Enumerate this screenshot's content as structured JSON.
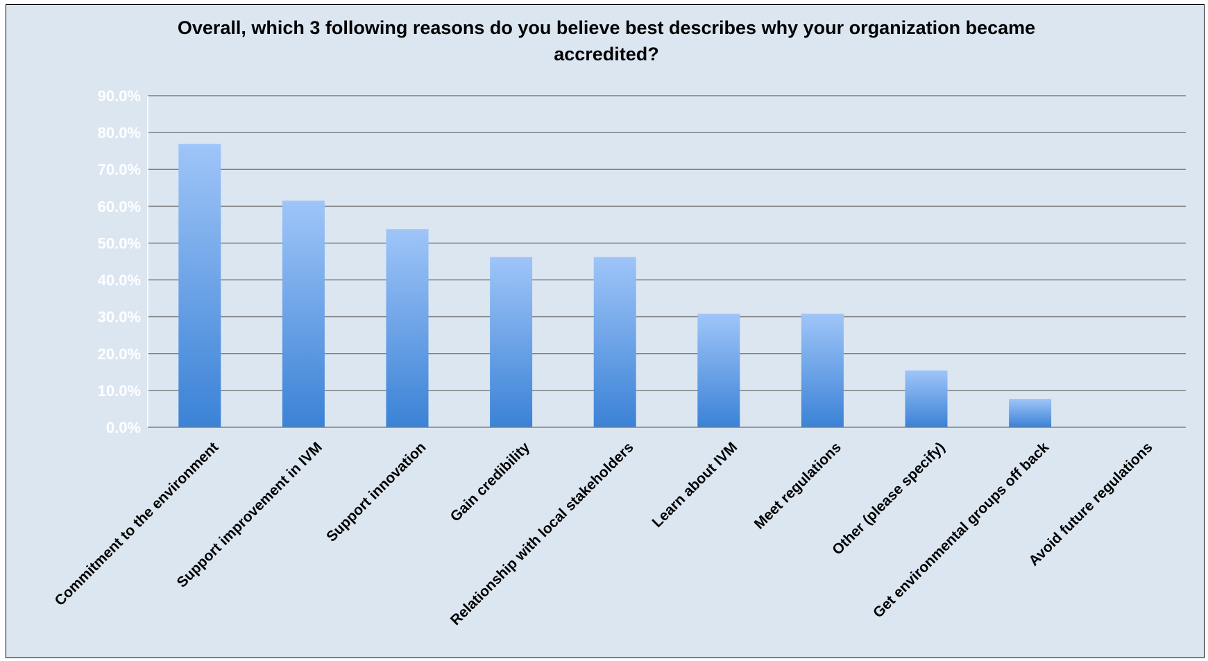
{
  "chart_data": {
    "type": "bar",
    "title_lines": [
      "Overall, which 3 following reasons do you believe best describes why your organization became",
      "accredited?"
    ],
    "categories": [
      "Commitment to the environment",
      "Support improvement in IVM",
      "Support innovation",
      "Gain credibility",
      "Relationship with local stakeholders",
      "Learn about IVM",
      "Meet  regulations",
      "Other (please specify)",
      "Get environmental groups off  back",
      "Avoid future  regulations"
    ],
    "values": [
      76.9,
      61.5,
      53.8,
      46.2,
      46.2,
      30.8,
      30.8,
      15.4,
      7.7,
      0.0
    ],
    "ylim": [
      0,
      90
    ],
    "ytick_labels": [
      "0.0%",
      "10.0%",
      "20.0%",
      "30.0%",
      "40.0%",
      "50.0%",
      "60.0%",
      "70.0%",
      "80.0%",
      "90.0%"
    ],
    "grid": true,
    "legend": "none",
    "colors": {
      "background": "#dce6f1",
      "plot_area": "#dce6f1",
      "gridline": "#7f7f7f",
      "bar_top": "#9fc5f8",
      "bar_bottom": "#3b82d6",
      "tick_label": "#ffffff",
      "text": "#000000"
    }
  }
}
